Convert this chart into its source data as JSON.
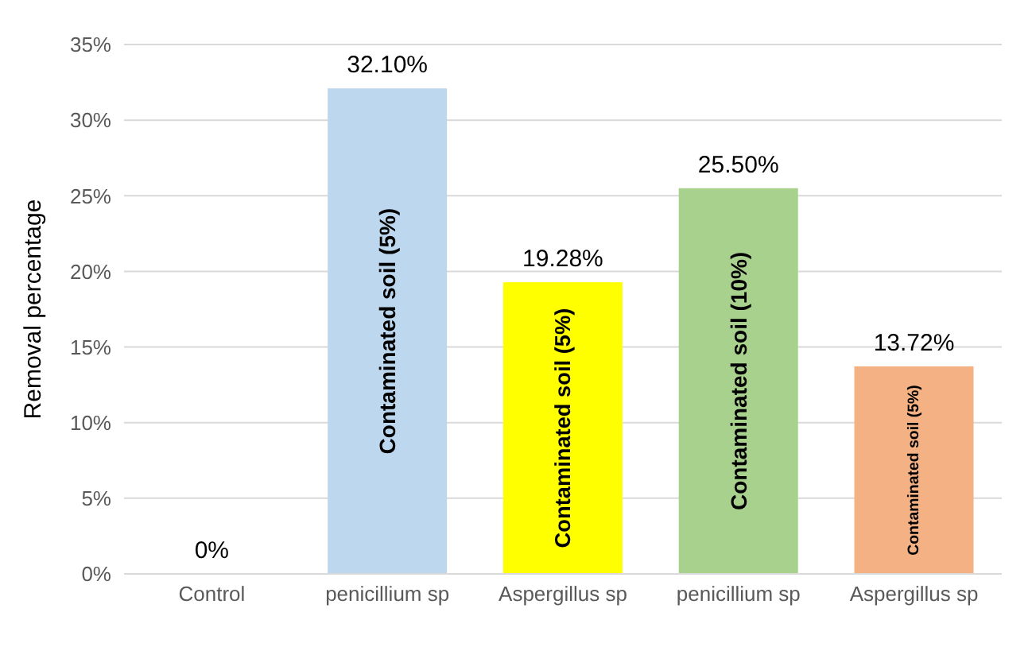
{
  "chart_data": {
    "type": "bar",
    "ylabel": "Removal percentage",
    "categories": [
      "Control",
      "penicillium  sp",
      "Aspergillus  sp",
      "penicillium  sp",
      "Aspergillus  sp"
    ],
    "values": [
      0,
      32.1,
      19.28,
      25.5,
      13.72
    ],
    "colors": [
      "#bdd7ee",
      "#bdd7ee",
      "#ffff00",
      "#a9d18e",
      "#f4b183"
    ],
    "value_labels": [
      "0%",
      "32.10%",
      "19.28%",
      "25.50%",
      "13.72%"
    ],
    "ylim": [
      0,
      35
    ],
    "yticks": [
      {
        "value": 0,
        "label": "0%"
      },
      {
        "value": 5,
        "label": "5%"
      },
      {
        "value": 10,
        "label": "10%"
      },
      {
        "value": 15,
        "label": "15%"
      },
      {
        "value": 20,
        "label": "20%"
      },
      {
        "value": 25,
        "label": "25%"
      },
      {
        "value": 30,
        "label": "30%"
      },
      {
        "value": 35,
        "label": "35%"
      }
    ],
    "grid": "y",
    "annotations": [
      "Contaminated soil (5%)",
      "Contaminated soil (5%)",
      "Contaminated soil (10%)",
      "Contaminated soil (5%)"
    ]
  }
}
